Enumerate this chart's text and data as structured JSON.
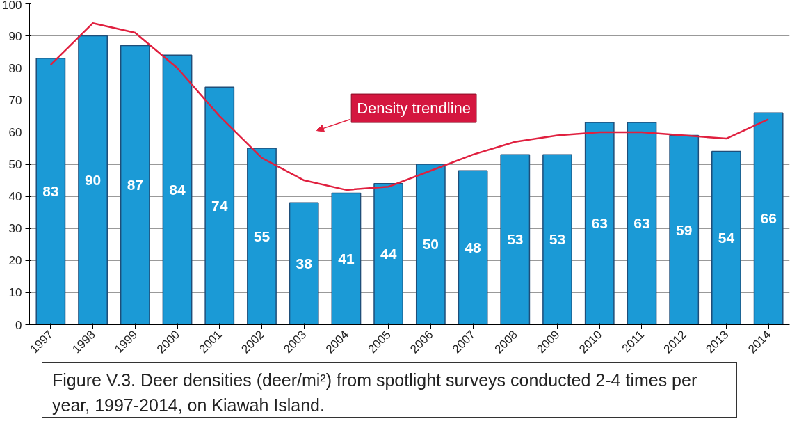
{
  "chart_data": {
    "type": "bar",
    "categories": [
      "1997",
      "1998",
      "1999",
      "2000",
      "2001",
      "2002",
      "2003",
      "2004",
      "2005",
      "2006",
      "2007",
      "2008",
      "2009",
      "2010",
      "2011",
      "2012",
      "2013",
      "2014"
    ],
    "series": [
      {
        "color": "#1b9ad6",
        "values": [
          83,
          90,
          87,
          84,
          74,
          55,
          38,
          41,
          44,
          50,
          48,
          53,
          53,
          63,
          63,
          59,
          54,
          66
        ],
        "value_labels": [
          "83",
          "90",
          "87",
          "84",
          "74",
          "55",
          "38",
          "41",
          "44",
          "50",
          "48",
          "53",
          "53",
          "63",
          "63",
          "59",
          "54",
          "66"
        ]
      },
      {
        "type": "line",
        "color": "#e0203f",
        "values": [
          81,
          94,
          91,
          80,
          65,
          52,
          45,
          42,
          43,
          48,
          53,
          57,
          59,
          60,
          60,
          59,
          58,
          64
        ]
      }
    ],
    "ylim": [
      0,
      100
    ],
    "yticks": [
      0,
      10,
      20,
      30,
      40,
      50,
      60,
      70,
      80,
      90,
      100
    ],
    "grid": "y",
    "marker": "none",
    "annotations": [
      "Density trendline",
      "Figure V.3.  Deer densities (deer/mi²) from spotlight surveys conducted 2-4 times per year, 1997-2014, on Kiawah Island."
    ]
  }
}
